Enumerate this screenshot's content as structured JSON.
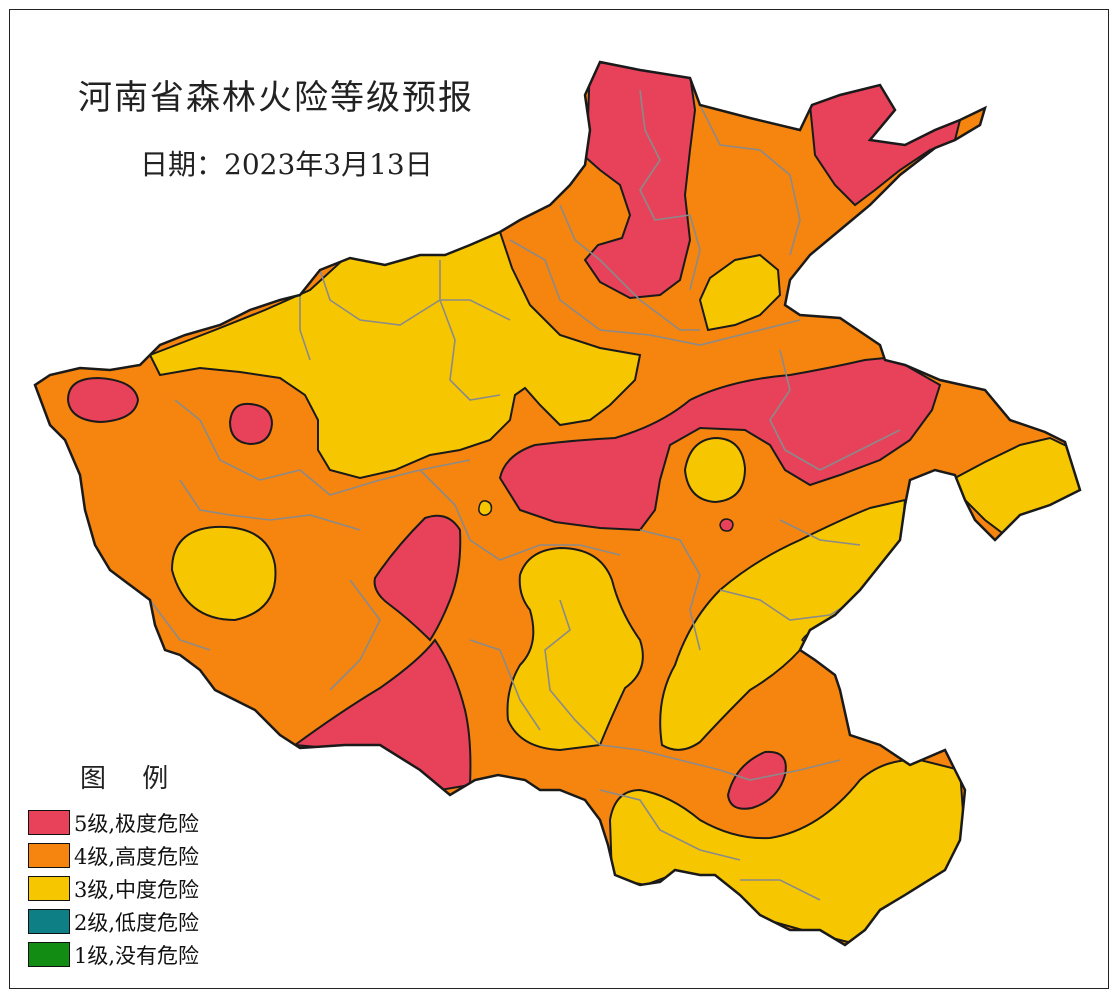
{
  "title": "河南省森林火险等级预报",
  "date_line": "日期：2023年3月13日",
  "legend": {
    "title": "图 例",
    "items": [
      {
        "label": "5级,极度危险",
        "color": "#e8415a"
      },
      {
        "label": "4级,高度危险",
        "color": "#f5850f"
      },
      {
        "label": "3级,中度危险",
        "color": "#f6c700"
      },
      {
        "label": "2级,低度危险",
        "color": "#0f7f86"
      },
      {
        "label": "1级,没有危险",
        "color": "#138c13"
      }
    ]
  },
  "colors": {
    "level5": "#e8415a",
    "level4": "#f5850f",
    "level3": "#f6c700",
    "boundary": "#1a1a1a",
    "county_lines": "#8a8a8a"
  }
}
